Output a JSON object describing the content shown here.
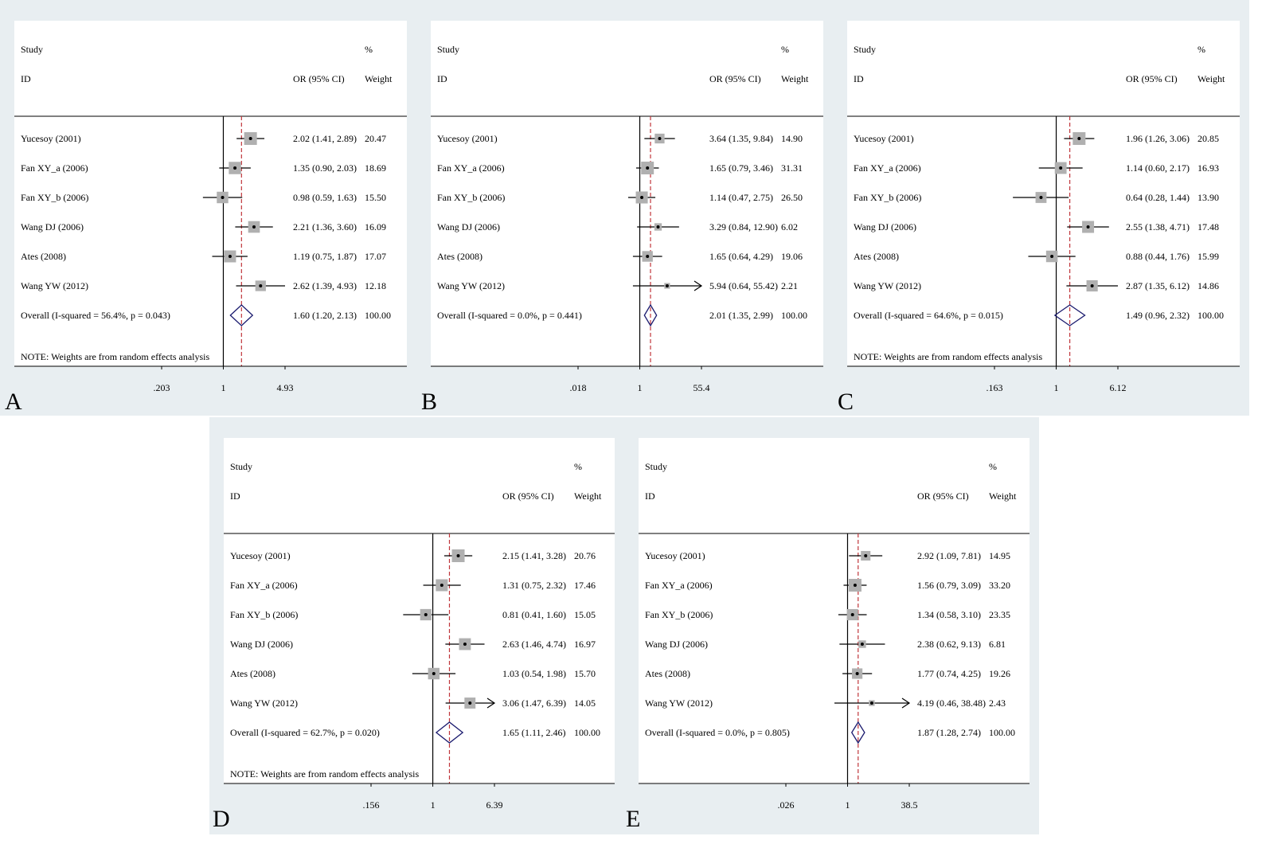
{
  "headers": {
    "study": "Study",
    "id": "ID",
    "percent": "%",
    "or_ci": "OR (95% CI)",
    "weight": "Weight"
  },
  "colors": {
    "outer_bg": "#e8eef1",
    "plot_bg": "#ffffff",
    "diamond": "#1a1a6e",
    "overall_line": "#c0353a",
    "box": "#b0b0b0"
  },
  "chart_data": [
    {
      "type": "forest",
      "panel_label": "A",
      "xscale": "log",
      "x_ticks": [
        ".203",
        "1",
        "4.93"
      ],
      "xlim": [
        0.203,
        4.93
      ],
      "note": "NOTE: Weights are from random effects analysis",
      "overall_value": 1.6,
      "studies": [
        {
          "name": "Yucesoy (2001)",
          "or": 2.02,
          "lo": 1.41,
          "hi": 2.89,
          "text": "2.02 (1.41, 2.89)",
          "weight": "20.47",
          "arrow": false
        },
        {
          "name": "Fan XY_a (2006)",
          "or": 1.35,
          "lo": 0.9,
          "hi": 2.03,
          "text": "1.35 (0.90, 2.03)",
          "weight": "18.69",
          "arrow": false
        },
        {
          "name": "Fan XY_b (2006)",
          "or": 0.98,
          "lo": 0.59,
          "hi": 1.63,
          "text": "0.98 (0.59, 1.63)",
          "weight": "15.50",
          "arrow": false
        },
        {
          "name": "Wang DJ (2006)",
          "or": 2.21,
          "lo": 1.36,
          "hi": 3.6,
          "text": "2.21 (1.36, 3.60)",
          "weight": "16.09",
          "arrow": false
        },
        {
          "name": "Ates (2008)",
          "or": 1.19,
          "lo": 0.75,
          "hi": 1.87,
          "text": "1.19 (0.75, 1.87)",
          "weight": "17.07",
          "arrow": false
        },
        {
          "name": "Wang YW (2012)",
          "or": 2.62,
          "lo": 1.39,
          "hi": 4.93,
          "text": "2.62 (1.39, 4.93)",
          "weight": "12.18",
          "arrow": false
        }
      ],
      "overall": {
        "label": "Overall  (I-squared = 56.4%, p = 0.043)",
        "or": 1.6,
        "lo": 1.2,
        "hi": 2.13,
        "text": "1.60 (1.20, 2.13)",
        "weight": "100.00"
      }
    },
    {
      "type": "forest",
      "panel_label": "B",
      "xscale": "log",
      "x_ticks": [
        ".018",
        "1",
        "55.4"
      ],
      "xlim": [
        0.018,
        55.4
      ],
      "note": "",
      "overall_value": 2.01,
      "studies": [
        {
          "name": "Yucesoy (2001)",
          "or": 3.64,
          "lo": 1.35,
          "hi": 9.84,
          "text": "3.64 (1.35, 9.84)",
          "weight": "14.90",
          "arrow": false
        },
        {
          "name": "Fan XY_a (2006)",
          "or": 1.65,
          "lo": 0.79,
          "hi": 3.46,
          "text": "1.65 (0.79, 3.46)",
          "weight": "31.31",
          "arrow": false
        },
        {
          "name": "Fan XY_b (2006)",
          "or": 1.14,
          "lo": 0.47,
          "hi": 2.75,
          "text": "1.14 (0.47, 2.75)",
          "weight": "26.50",
          "arrow": false
        },
        {
          "name": "Wang DJ (2006)",
          "or": 3.29,
          "lo": 0.84,
          "hi": 12.9,
          "text": "3.29 (0.84, 12.90)",
          "weight": "6.02",
          "arrow": false
        },
        {
          "name": "Ates (2008)",
          "or": 1.65,
          "lo": 0.64,
          "hi": 4.29,
          "text": "1.65 (0.64, 4.29)",
          "weight": "19.06",
          "arrow": false
        },
        {
          "name": "Wang YW (2012)",
          "or": 5.94,
          "lo": 0.64,
          "hi": 55.42,
          "text": "5.94 (0.64, 55.42)",
          "weight": "2.21",
          "arrow": true
        }
      ],
      "overall": {
        "label": "Overall  (I-squared = 0.0%, p = 0.441)",
        "or": 2.01,
        "lo": 1.35,
        "hi": 2.99,
        "text": "2.01 (1.35, 2.99)",
        "weight": "100.00"
      }
    },
    {
      "type": "forest",
      "panel_label": "C",
      "xscale": "log",
      "x_ticks": [
        ".163",
        "1",
        "6.12"
      ],
      "xlim": [
        0.163,
        6.12
      ],
      "note": "NOTE: Weights are from random effects analysis",
      "overall_value": 1.49,
      "studies": [
        {
          "name": "Yucesoy (2001)",
          "or": 1.96,
          "lo": 1.26,
          "hi": 3.06,
          "text": "1.96 (1.26, 3.06)",
          "weight": "20.85",
          "arrow": false
        },
        {
          "name": "Fan XY_a (2006)",
          "or": 1.14,
          "lo": 0.6,
          "hi": 2.17,
          "text": "1.14 (0.60, 2.17)",
          "weight": "16.93",
          "arrow": false
        },
        {
          "name": "Fan XY_b (2006)",
          "or": 0.64,
          "lo": 0.28,
          "hi": 1.44,
          "text": "0.64 (0.28, 1.44)",
          "weight": "13.90",
          "arrow": false
        },
        {
          "name": "Wang DJ (2006)",
          "or": 2.55,
          "lo": 1.38,
          "hi": 4.71,
          "text": "2.55 (1.38, 4.71)",
          "weight": "17.48",
          "arrow": false
        },
        {
          "name": "Ates (2008)",
          "or": 0.88,
          "lo": 0.44,
          "hi": 1.76,
          "text": "0.88 (0.44, 1.76)",
          "weight": "15.99",
          "arrow": false
        },
        {
          "name": "Wang YW (2012)",
          "or": 2.87,
          "lo": 1.35,
          "hi": 6.12,
          "text": "2.87 (1.35, 6.12)",
          "weight": "14.86",
          "arrow": false
        }
      ],
      "overall": {
        "label": "Overall  (I-squared = 64.6%, p = 0.015)",
        "or": 1.49,
        "lo": 0.96,
        "hi": 2.32,
        "text": "1.49 (0.96, 2.32)",
        "weight": "100.00"
      }
    },
    {
      "type": "forest",
      "panel_label": "D",
      "xscale": "log",
      "x_ticks": [
        ".156",
        "1",
        "6.39"
      ],
      "xlim": [
        0.156,
        6.39
      ],
      "note": "NOTE: Weights are from random effects analysis",
      "overall_value": 1.65,
      "studies": [
        {
          "name": "Yucesoy (2001)",
          "or": 2.15,
          "lo": 1.41,
          "hi": 3.28,
          "text": "2.15 (1.41, 3.28)",
          "weight": "20.76",
          "arrow": false
        },
        {
          "name": "Fan XY_a (2006)",
          "or": 1.31,
          "lo": 0.75,
          "hi": 2.32,
          "text": "1.31 (0.75, 2.32)",
          "weight": "17.46",
          "arrow": false
        },
        {
          "name": "Fan XY_b (2006)",
          "or": 0.81,
          "lo": 0.41,
          "hi": 1.6,
          "text": "0.81 (0.41, 1.60)",
          "weight": "15.05",
          "arrow": false
        },
        {
          "name": "Wang DJ (2006)",
          "or": 2.63,
          "lo": 1.46,
          "hi": 4.74,
          "text": "2.63 (1.46, 4.74)",
          "weight": "16.97",
          "arrow": false
        },
        {
          "name": "Ates (2008)",
          "or": 1.03,
          "lo": 0.54,
          "hi": 1.98,
          "text": "1.03 (0.54, 1.98)",
          "weight": "15.70",
          "arrow": false
        },
        {
          "name": "Wang YW (2012)",
          "or": 3.06,
          "lo": 1.47,
          "hi": 6.39,
          "text": "3.06 (1.47, 6.39)",
          "weight": "14.05",
          "arrow": true
        }
      ],
      "overall": {
        "label": "Overall  (I-squared = 62.7%, p = 0.020)",
        "or": 1.65,
        "lo": 1.11,
        "hi": 2.46,
        "text": "1.65 (1.11, 2.46)",
        "weight": "100.00"
      }
    },
    {
      "type": "forest",
      "panel_label": "E",
      "xscale": "log",
      "x_ticks": [
        ".026",
        "1",
        "38.5"
      ],
      "xlim": [
        0.026,
        38.5
      ],
      "note": "",
      "overall_value": 1.87,
      "studies": [
        {
          "name": "Yucesoy (2001)",
          "or": 2.92,
          "lo": 1.09,
          "hi": 7.81,
          "text": "2.92 (1.09, 7.81)",
          "weight": "14.95",
          "arrow": false
        },
        {
          "name": "Fan XY_a (2006)",
          "or": 1.56,
          "lo": 0.79,
          "hi": 3.09,
          "text": "1.56 (0.79, 3.09)",
          "weight": "33.20",
          "arrow": false
        },
        {
          "name": "Fan XY_b (2006)",
          "or": 1.34,
          "lo": 0.58,
          "hi": 3.1,
          "text": "1.34 (0.58, 3.10)",
          "weight": "23.35",
          "arrow": false
        },
        {
          "name": "Wang DJ (2006)",
          "or": 2.38,
          "lo": 0.62,
          "hi": 9.13,
          "text": "2.38 (0.62, 9.13)",
          "weight": "6.81",
          "arrow": false
        },
        {
          "name": "Ates (2008)",
          "or": 1.77,
          "lo": 0.74,
          "hi": 4.25,
          "text": "1.77 (0.74, 4.25)",
          "weight": "19.26",
          "arrow": false
        },
        {
          "name": "Wang YW (2012)",
          "or": 4.19,
          "lo": 0.46,
          "hi": 38.48,
          "text": "4.19 (0.46, 38.48)",
          "weight": "2.43",
          "arrow": true
        }
      ],
      "overall": {
        "label": "Overall  (I-squared = 0.0%, p = 0.805)",
        "or": 1.87,
        "lo": 1.28,
        "hi": 2.74,
        "text": "1.87 (1.28, 2.74)",
        "weight": "100.00"
      }
    }
  ]
}
